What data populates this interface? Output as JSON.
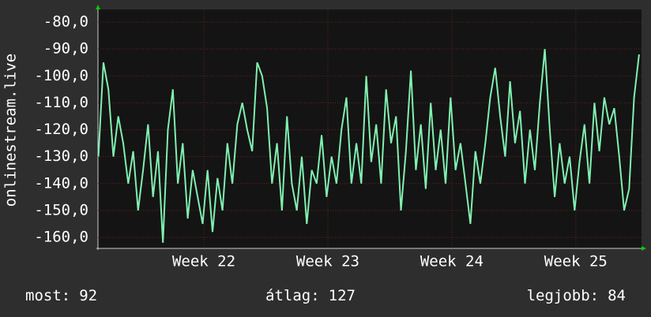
{
  "chart_data": {
    "type": "line",
    "y_label": "onlinestream.live",
    "x": [
      21.15,
      21.19,
      21.23,
      21.27,
      21.31,
      21.35,
      21.39,
      21.43,
      21.47,
      21.51,
      21.55,
      21.59,
      21.63,
      21.67,
      21.71,
      21.75,
      21.79,
      21.83,
      21.87,
      21.91,
      21.95,
      21.99,
      22.03,
      22.07,
      22.11,
      22.15,
      22.19,
      22.23,
      22.27,
      22.31,
      22.35,
      22.39,
      22.43,
      22.47,
      22.51,
      22.55,
      22.59,
      22.63,
      22.67,
      22.71,
      22.75,
      22.79,
      22.83,
      22.87,
      22.91,
      22.95,
      22.99,
      23.03,
      23.07,
      23.11,
      23.15,
      23.19,
      23.23,
      23.27,
      23.31,
      23.35,
      23.39,
      23.43,
      23.47,
      23.51,
      23.55,
      23.59,
      23.63,
      23.67,
      23.71,
      23.75,
      23.79,
      23.83,
      23.87,
      23.91,
      23.95,
      23.99,
      24.03,
      24.07,
      24.11,
      24.15,
      24.19,
      24.23,
      24.27,
      24.31,
      24.35,
      24.39,
      24.43,
      24.47,
      24.51,
      24.55,
      24.59,
      24.63,
      24.67,
      24.71,
      24.75,
      24.79,
      24.83,
      24.87,
      24.91,
      24.95,
      24.99,
      25.03,
      25.07,
      25.11,
      25.15,
      25.19,
      25.23,
      25.27,
      25.31,
      25.35,
      25.39,
      25.43,
      25.47,
      25.51
    ],
    "series": [
      {
        "color": "#80f0b0",
        "values": [
          -130,
          -95,
          -105,
          -130,
          -115,
          -125,
          -140,
          -128,
          -150,
          -135,
          -118,
          -145,
          -128,
          -162,
          -120,
          -105,
          -140,
          -125,
          -153,
          -135,
          -145,
          -155,
          -135,
          -158,
          -138,
          -150,
          -125,
          -140,
          -118,
          -110,
          -120,
          -128,
          -95,
          -100,
          -112,
          -140,
          -125,
          -150,
          -115,
          -140,
          -150,
          -130,
          -155,
          -135,
          -140,
          -122,
          -145,
          -130,
          -140,
          -120,
          -108,
          -140,
          -125,
          -140,
          -100,
          -132,
          -118,
          -140,
          -105,
          -125,
          -115,
          -150,
          -128,
          -98,
          -135,
          -118,
          -142,
          -110,
          -135,
          -120,
          -140,
          -108,
          -135,
          -125,
          -140,
          -155,
          -128,
          -140,
          -125,
          -108,
          -97,
          -115,
          -130,
          -102,
          -125,
          -113,
          -140,
          -120,
          -135,
          -110,
          -90,
          -120,
          -145,
          -125,
          -140,
          -130,
          -150,
          -132,
          -118,
          -140,
          -110,
          -128,
          -108,
          -118,
          -112,
          -130,
          -150,
          -142,
          -108,
          -92
        ]
      }
    ],
    "xlim": [
      21.146,
      25.53
    ],
    "xticks": [
      {
        "value": 22,
        "label": "Week 22"
      },
      {
        "value": 23,
        "label": "Week 23"
      },
      {
        "value": 24,
        "label": "Week 24"
      },
      {
        "value": 25,
        "label": "Week 25"
      }
    ],
    "ylim": [
      -164.1,
      -75.3
    ],
    "yticks": [
      {
        "value": -80,
        "label": "-80,0"
      },
      {
        "value": -90,
        "label": "-90,0"
      },
      {
        "value": -100,
        "label": "-100,0"
      },
      {
        "value": -110,
        "label": "-110,0"
      },
      {
        "value": -120,
        "label": "-120,0"
      },
      {
        "value": -130,
        "label": "-130,0"
      },
      {
        "value": -140,
        "label": "-140,0"
      },
      {
        "value": -150,
        "label": "-150,0"
      },
      {
        "value": -160,
        "label": "-160,0"
      }
    ],
    "grid": true,
    "stats": [
      {
        "label": "most:",
        "value": 92
      },
      {
        "label": "átlag:",
        "value": 127
      },
      {
        "label": "legjobb:",
        "value": 84
      }
    ]
  }
}
